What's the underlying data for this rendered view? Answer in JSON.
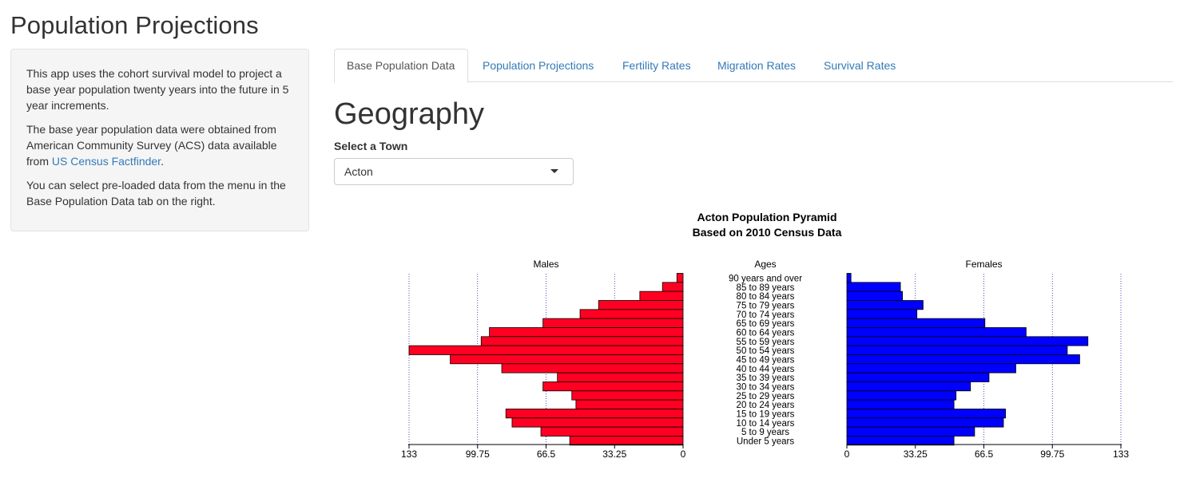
{
  "app": {
    "title": "Population Projections"
  },
  "sidebar": {
    "p1": "This app uses the cohort survival model to project a base year population twenty years into the future in 5 year increments.",
    "p2_before": "The base year population data were obtained from American Community Survey (ACS) data available from ",
    "p2_link": "US Census Factfinder",
    "p2_after": ".",
    "p3": "You can select pre-loaded data from the menu in the Base Population Data tab on the right."
  },
  "tabs": [
    {
      "label": "Base Population Data",
      "active": true
    },
    {
      "label": "Population Projections",
      "active": false
    },
    {
      "label": "Fertility Rates",
      "active": false
    },
    {
      "label": "Migration Rates",
      "active": false
    },
    {
      "label": "Survival Rates",
      "active": false
    }
  ],
  "main": {
    "section_title": "Geography",
    "town_select": {
      "label": "Select a Town",
      "value": "Acton"
    }
  },
  "colors": {
    "males": "#ff0022",
    "females": "#0000ff",
    "link": "#337ab7"
  },
  "chart_data": {
    "type": "bar",
    "orientation": "horizontal-pyramid",
    "title": "Acton Population Pyramid",
    "subtitle": "Based on 2010 Census Data",
    "center_label": "Ages",
    "xlim": [
      0,
      133
    ],
    "ticks": [
      0,
      33.25,
      66.5,
      99.75,
      133
    ],
    "tick_labels_left": [
      "133",
      "99.75",
      "66.5",
      "33.25",
      "0"
    ],
    "tick_labels_right": [
      "0",
      "33.25",
      "66.5",
      "99.75",
      "133"
    ],
    "grid": "vertical dotted",
    "categories": [
      "90 years and over",
      "85 to 89 years",
      "80 to 84 years",
      "75 to 79 years",
      "70 to 74 years",
      "65 to 69 years",
      "60 to 64 years",
      "55 to 59 years",
      "50 to 54 years",
      "45 to 49 years",
      "40 to 44 years",
      "35 to 39 years",
      "30 to 34 years",
      "25 to 29 years",
      "20 to 24 years",
      "15 to 19 years",
      "10 to 14 years",
      "5 to 9 years",
      "Under 5 years"
    ],
    "series": [
      {
        "name": "Males",
        "side": "left",
        "values": [
          3,
          10,
          21,
          41,
          50,
          68,
          94,
          98,
          133,
          113,
          88,
          61,
          68,
          54,
          52,
          86,
          83,
          69,
          55
        ]
      },
      {
        "name": "Females",
        "side": "right",
        "values": [
          2,
          26,
          27,
          37,
          34,
          67,
          87,
          117,
          107,
          113,
          82,
          69,
          60,
          53,
          52,
          77,
          76,
          62,
          52
        ]
      }
    ]
  }
}
